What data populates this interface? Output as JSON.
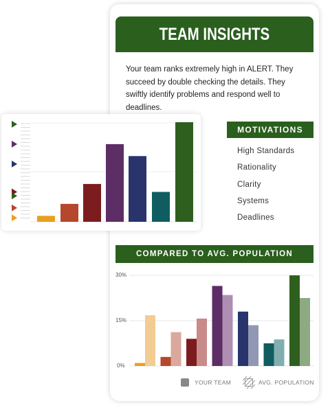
{
  "card": {
    "title": "TEAM INSIGHTS",
    "description": "Your team ranks extremely high in ALERT. They succeed by double checking the details. They swiftly identify problems and respond well to deadlines.",
    "motivations_title": "MOTIVATIONS",
    "motivations": [
      "High Standards",
      "Rationality",
      "Clarity",
      "Systems",
      "Deadlines"
    ],
    "compare_title": "COMPARED TO AVG. POPULATION",
    "legend": {
      "team": "YOUR TEAM",
      "population": "AVG. POPULATION"
    }
  },
  "colors": {
    "green": "#2a5f1e",
    "palette": [
      "#e8a020",
      "#b5472c",
      "#7c1c1e",
      "#5d2d66",
      "#28346b",
      "#0f5d60",
      "#2e5f1f"
    ],
    "palette_light": [
      "#f3cc93",
      "#dba89c",
      "#c98a8a",
      "#ae8eb3",
      "#9098b5",
      "#82aeb0",
      "#8eaa83"
    ]
  },
  "chart_data": [
    {
      "type": "bar",
      "series": [
        {
          "values": [
            3,
            9,
            19,
            39,
            33,
            15,
            50
          ]
        }
      ],
      "markers": [
        49,
        39,
        29,
        15,
        13,
        7,
        2
      ]
    },
    {
      "type": "bar",
      "yticks": [
        "30%",
        "15%",
        "0%"
      ],
      "ylim": [
        0,
        30
      ],
      "series": [
        {
          "name": "YOUR TEAM",
          "values": [
            1,
            3,
            9,
            26.5,
            18,
            7.5,
            30
          ]
        },
        {
          "name": "AVG. POPULATION",
          "values": [
            16.8,
            11.2,
            15.7,
            23.5,
            13.5,
            8.8,
            22.5
          ]
        }
      ]
    }
  ]
}
